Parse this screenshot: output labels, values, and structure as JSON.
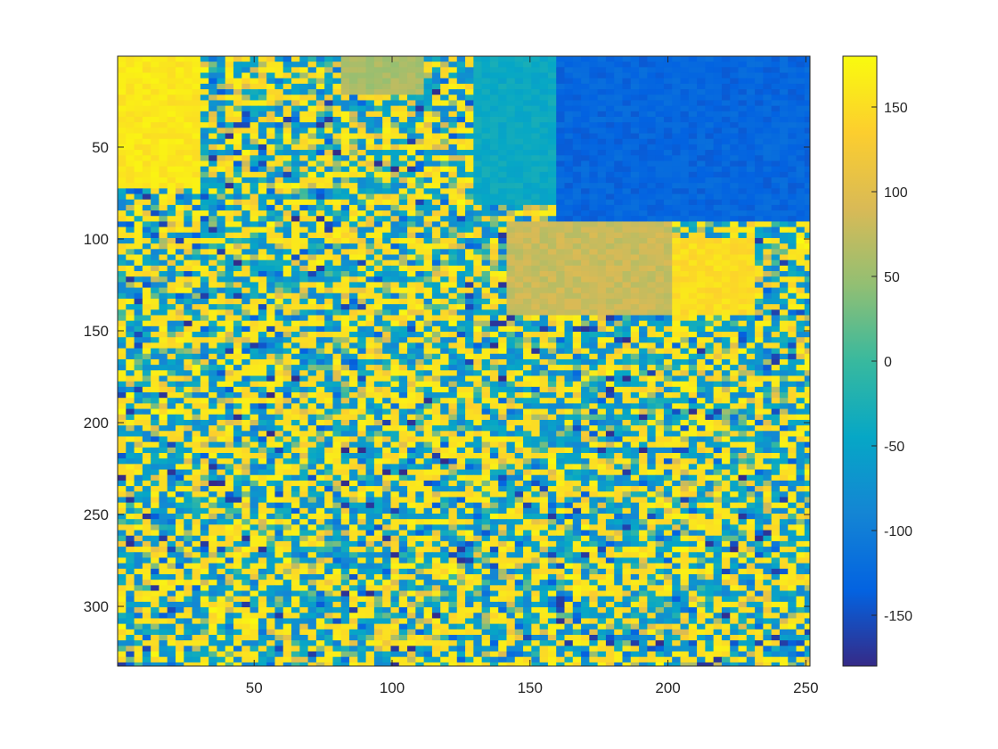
{
  "chart_data": {
    "type": "heatmap",
    "title": "",
    "xlabel": "",
    "ylabel": "",
    "image_size": {
      "columns": 251,
      "rows": 332
    },
    "xlim": [
      0.5,
      251.5
    ],
    "ylim": [
      0.5,
      332.5
    ],
    "y_direction": "reverse",
    "x_ticks": [
      50,
      100,
      150,
      200,
      250
    ],
    "x_tick_labels": [
      "50",
      "100",
      "150",
      "200",
      "250"
    ],
    "y_ticks": [
      50,
      100,
      150,
      200,
      250,
      300
    ],
    "y_tick_labels": [
      "50",
      "100",
      "150",
      "200",
      "250",
      "300"
    ],
    "colorbar": {
      "colormap": "parula",
      "clim": [
        -180,
        180
      ],
      "ticks": [
        150,
        100,
        50,
        0,
        -50,
        -100,
        -150
      ],
      "tick_labels": [
        "150",
        "100",
        "50",
        "0",
        "-50",
        "-100",
        "-150"
      ],
      "placement": "right"
    },
    "grid": false,
    "regions": [
      {
        "x_range": [
          1,
          30
        ],
        "y_range": [
          1,
          70
        ],
        "value": 160
      },
      {
        "x_range": [
          80,
          110
        ],
        "y_range": [
          1,
          20
        ],
        "value": 60
      },
      {
        "x_range": [
          160,
          250
        ],
        "y_range": [
          1,
          90
        ],
        "value": -130
      },
      {
        "x_range": [
          130,
          160
        ],
        "y_range": [
          1,
          80
        ],
        "value": -40
      },
      {
        "x_range": [
          140,
          200
        ],
        "y_range": [
          90,
          140
        ],
        "value": 80
      },
      {
        "x_range": [
          180,
          230
        ],
        "y_range": [
          100,
          140
        ],
        "value": 150
      },
      {
        "x_range": [
          1,
          250
        ],
        "y_range": [
          150,
          332
        ],
        "value": "mixed"
      }
    ]
  }
}
